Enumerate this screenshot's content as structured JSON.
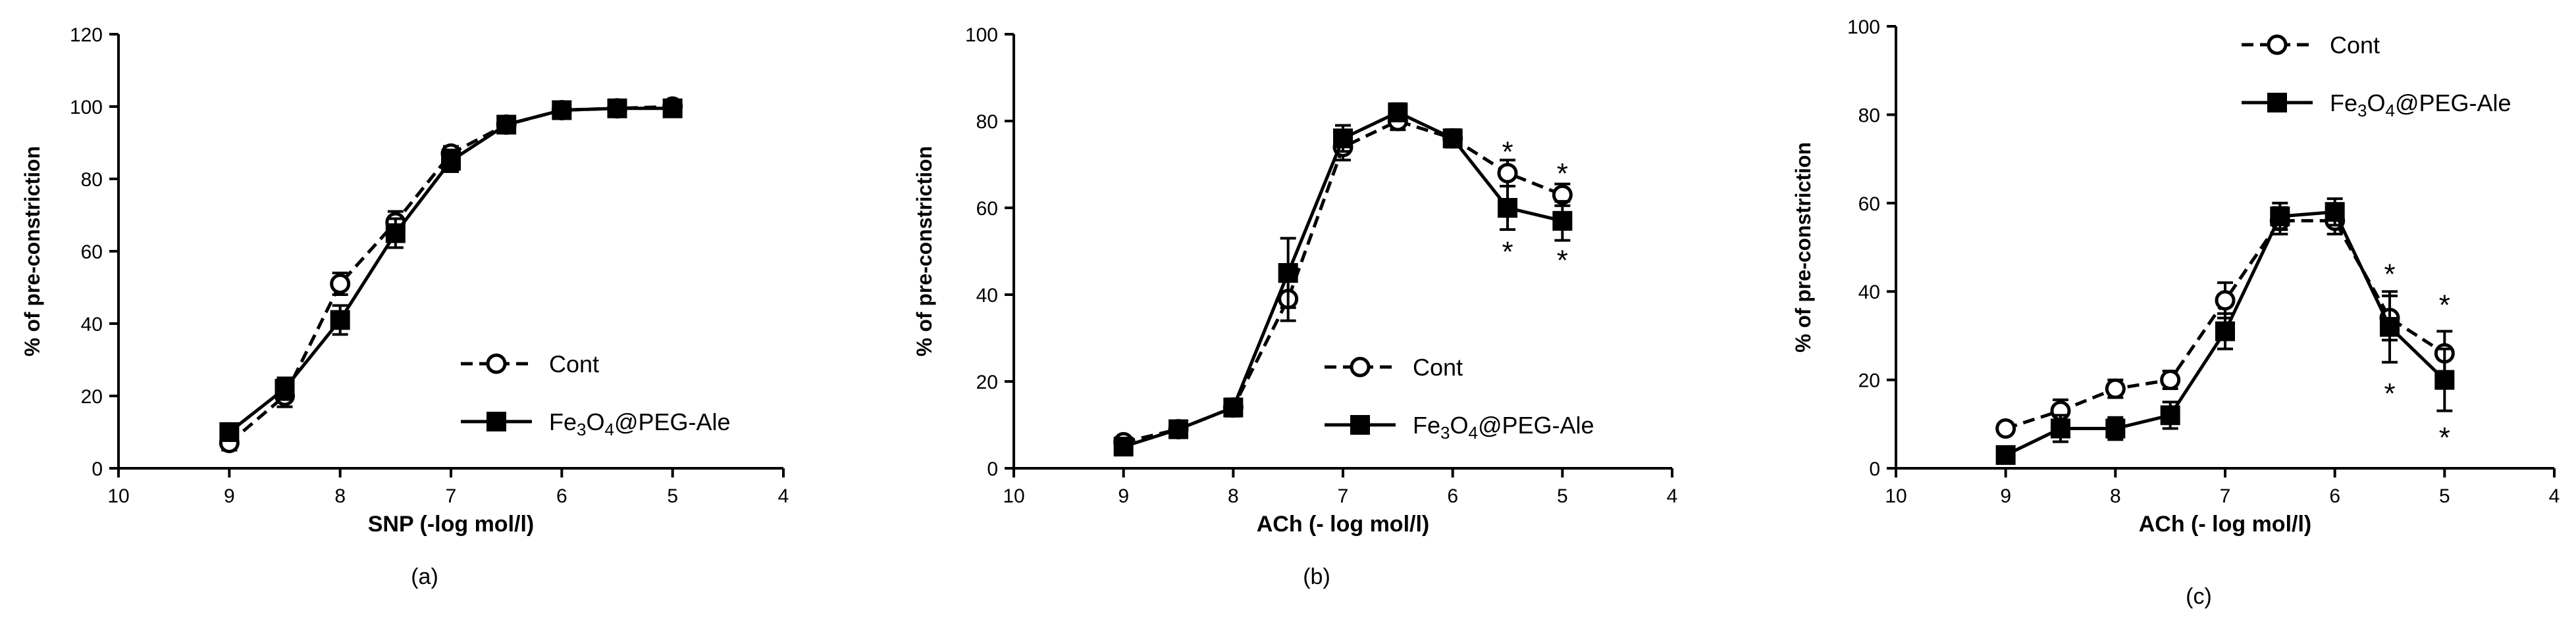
{
  "chart_data": [
    {
      "type": "line",
      "panel_label": "(a)",
      "xlabel": "SNP (-log mol/l)",
      "ylabel": "% of pre-constriction",
      "xlim": [
        10,
        4
      ],
      "ylim": [
        0,
        120
      ],
      "x_ticks": [
        "10",
        "9",
        "8",
        "7",
        "6",
        "5",
        "4"
      ],
      "y_ticks": [
        "0",
        "20",
        "40",
        "60",
        "80",
        "100",
        "120"
      ],
      "legend_position": "bottom-right",
      "series": [
        {
          "name": "Cont",
          "marker": "open-circle",
          "line": "dashed",
          "x": [
            9,
            8.5,
            8,
            7.5,
            7,
            6.5,
            6,
            5.5,
            5
          ],
          "y": [
            7,
            20,
            51,
            68,
            87,
            95,
            99,
            99.5,
            100
          ],
          "err": [
            2,
            3,
            3,
            3,
            2,
            1.5,
            1.5,
            1,
            1
          ]
        },
        {
          "name": "Fe₃O₄@PEG-Ale",
          "marker": "filled-square",
          "line": "solid",
          "x": [
            9,
            8.5,
            8,
            7.5,
            7,
            6.5,
            6,
            5.5,
            5
          ],
          "y": [
            10,
            22,
            41,
            65,
            85,
            95,
            99,
            99.5,
            99.5
          ],
          "err": [
            2,
            3,
            4,
            4,
            3,
            2,
            1.5,
            1,
            1
          ]
        }
      ],
      "annotations": []
    },
    {
      "type": "line",
      "panel_label": "(b)",
      "xlabel": "ACh (- log mol/l)",
      "ylabel": "% of pre-constriction",
      "xlim": [
        10,
        4
      ],
      "ylim": [
        0,
        100
      ],
      "x_ticks": [
        "10",
        "9",
        "8",
        "7",
        "6",
        "5",
        "4"
      ],
      "y_ticks": [
        "0",
        "20",
        "40",
        "60",
        "80",
        "100"
      ],
      "legend_position": "bottom-right",
      "series": [
        {
          "name": "Cont",
          "marker": "open-circle",
          "line": "dashed",
          "x": [
            9,
            8.5,
            8,
            7.5,
            7,
            6.5,
            6,
            5.5,
            5
          ],
          "y": [
            6,
            9,
            14,
            39,
            74,
            80,
            76,
            68,
            63
          ],
          "err": [
            1,
            1,
            1.5,
            5,
            3,
            2,
            2,
            3,
            2.5
          ]
        },
        {
          "name": "Fe₃O₄@PEG-Ale",
          "marker": "filled-square",
          "line": "solid",
          "x": [
            9,
            8.5,
            8,
            7.5,
            7,
            6.5,
            6,
            5.5,
            5
          ],
          "y": [
            5,
            9,
            14,
            45,
            76,
            82,
            76,
            60,
            57
          ],
          "err": [
            1,
            1,
            2,
            8,
            3,
            2,
            2,
            5,
            4.5
          ]
        }
      ],
      "annotations": [
        {
          "text": "*",
          "x": 5.5,
          "y": 74
        },
        {
          "text": "*",
          "x": 5,
          "y": 69
        },
        {
          "text": "*",
          "x": 5.5,
          "y": 51
        },
        {
          "text": "*",
          "x": 5,
          "y": 49
        }
      ]
    },
    {
      "type": "line",
      "panel_label": "(c)",
      "xlabel": "ACh (- log mol/l)",
      "ylabel": "% of pre-constriction",
      "xlim": [
        10,
        4
      ],
      "ylim": [
        0,
        100
      ],
      "x_ticks": [
        "10",
        "9",
        "8",
        "7",
        "6",
        "5",
        "4"
      ],
      "y_ticks": [
        "0",
        "20",
        "40",
        "60",
        "80",
        "100"
      ],
      "legend_position": "top-right",
      "series": [
        {
          "name": "Cont",
          "marker": "open-circle",
          "line": "dashed",
          "x": [
            9,
            8.5,
            8,
            7.5,
            7,
            6.5,
            6,
            5.5,
            5
          ],
          "y": [
            9,
            13,
            18,
            20,
            38,
            56,
            56,
            34,
            26
          ],
          "err": [
            1,
            2.5,
            2,
            2,
            4,
            3,
            3,
            5,
            5
          ]
        },
        {
          "name": "Fe₃O₄@PEG-Ale",
          "marker": "filled-square",
          "line": "solid",
          "x": [
            9,
            8.5,
            8,
            7.5,
            7,
            6.5,
            6,
            5.5,
            5
          ],
          "y": [
            3,
            9,
            9,
            12,
            31,
            57,
            58,
            32,
            20
          ],
          "err": [
            1,
            3,
            2.5,
            3,
            4,
            3,
            3,
            8,
            7
          ]
        }
      ],
      "annotations": [
        {
          "text": "*",
          "x": 5.5,
          "y": 45
        },
        {
          "text": "*",
          "x": 5,
          "y": 38
        },
        {
          "text": "*",
          "x": 5.5,
          "y": 18
        },
        {
          "text": "*",
          "x": 5,
          "y": 8
        }
      ]
    }
  ]
}
